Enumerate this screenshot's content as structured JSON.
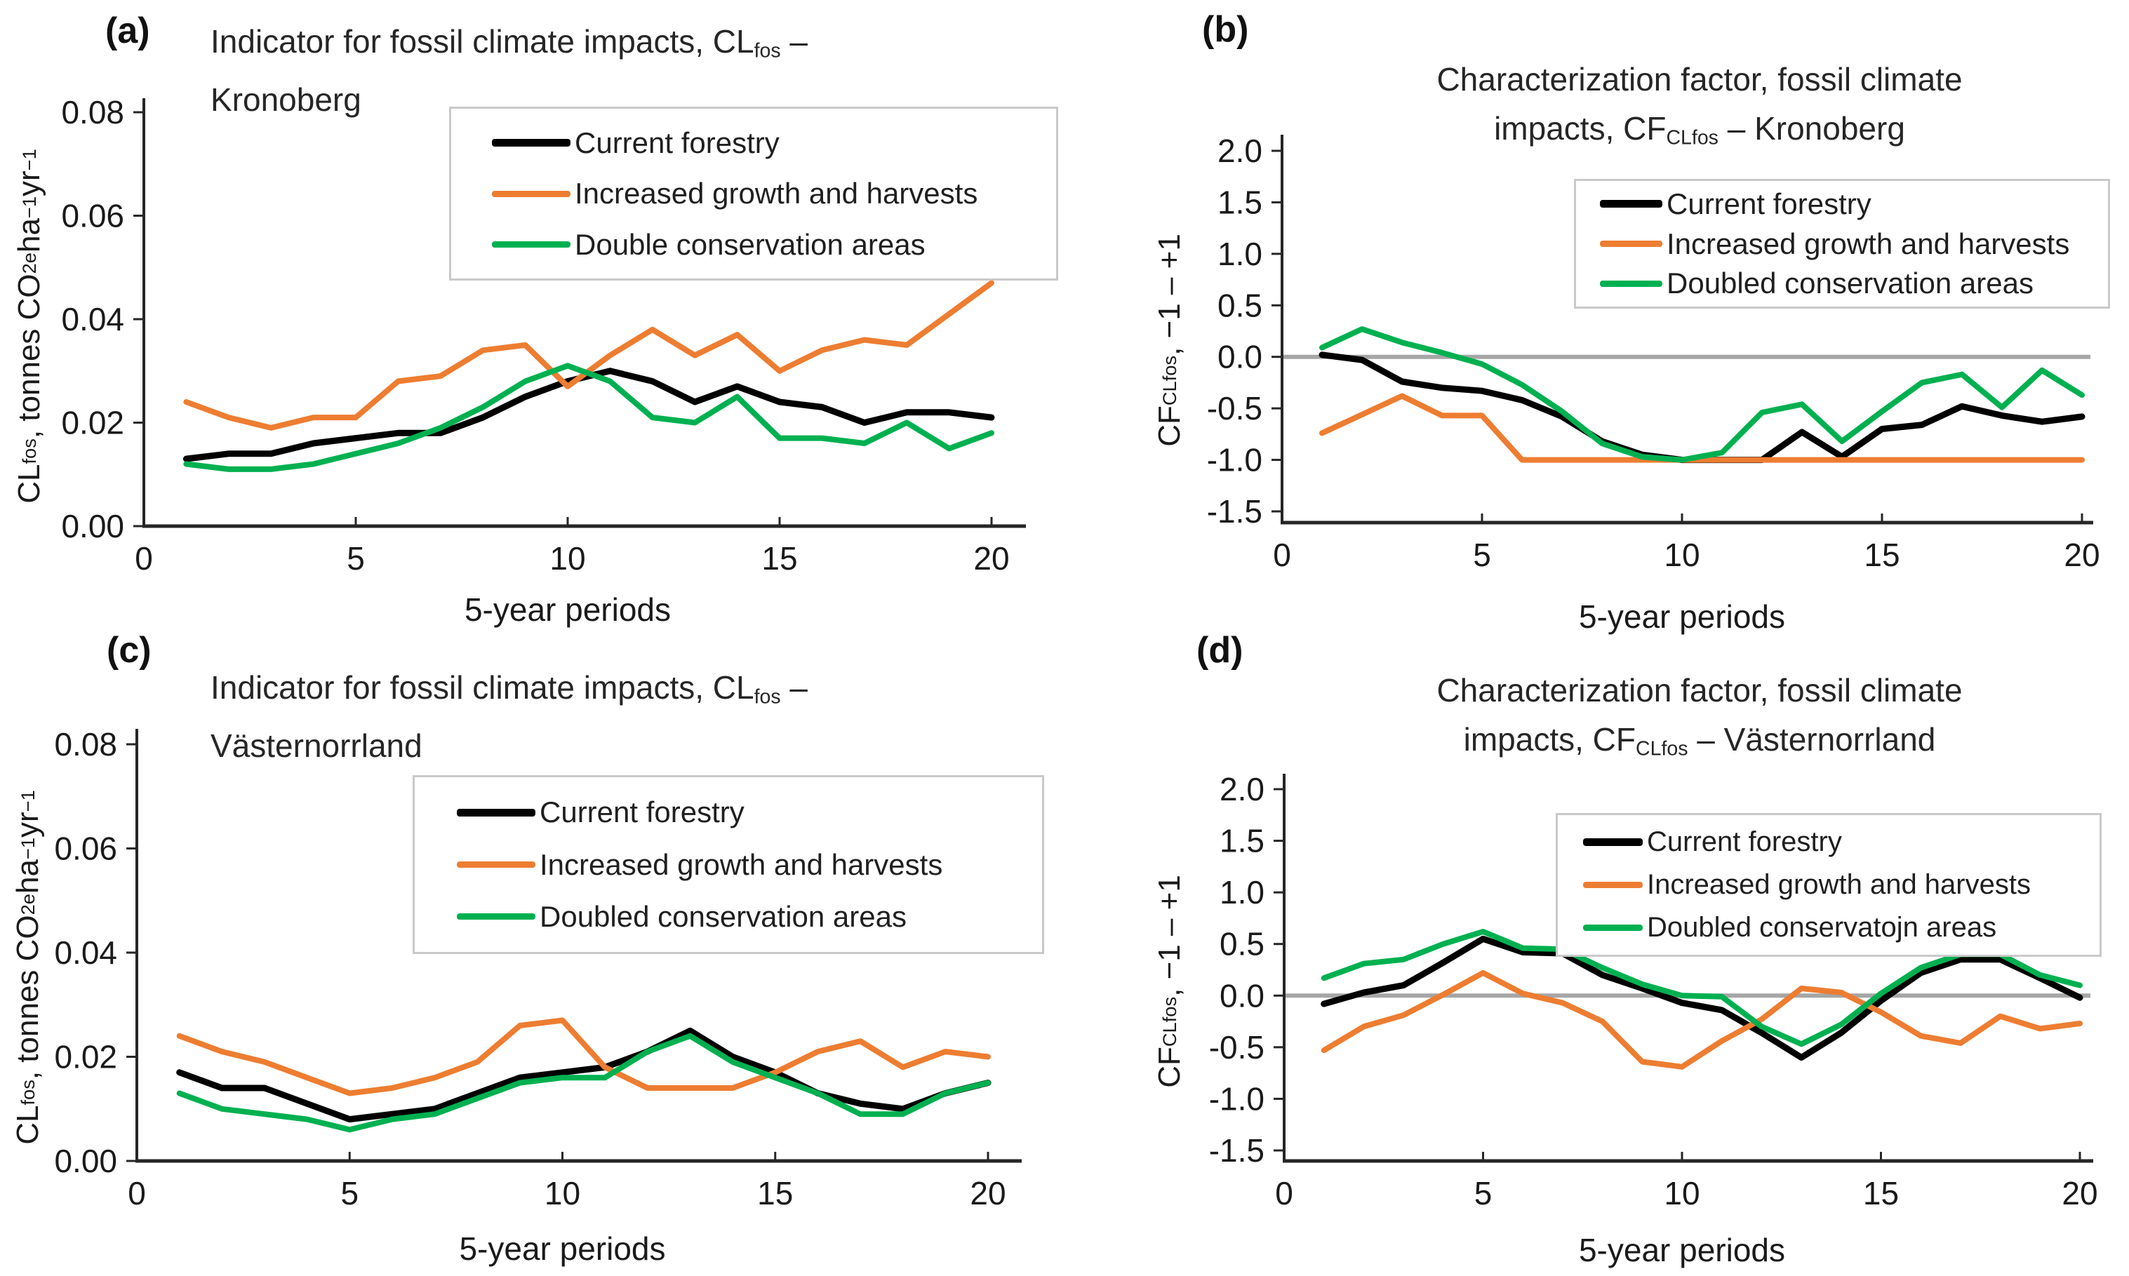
{
  "figure": {
    "background": "#FFFFFF",
    "panels": [
      {
        "id": "a",
        "tag": "(a)",
        "title_line1": [
          {
            "t": "Indicator for fossil climate impacts, CL"
          },
          {
            "t": "fos",
            "v": "sub"
          },
          {
            "t": " –"
          }
        ],
        "title_line2": [
          {
            "t": "Kronoberg"
          }
        ],
        "ylabel": [
          {
            "t": "CL"
          },
          {
            "t": "fos",
            "v": "sub"
          },
          {
            "t": ", tonnes CO"
          },
          {
            "t": "2e",
            "v": "sub"
          },
          {
            "t": " ha"
          },
          {
            "t": "−1",
            "v": "sup"
          },
          {
            "t": " yr"
          },
          {
            "t": "−1",
            "v": "sup"
          }
        ],
        "xlabel": "5-year periods",
        "legend": [
          {
            "label": "Current forestry",
            "series": "current"
          },
          {
            "label": "Increased growth and harvests",
            "series": "increased"
          },
          {
            "label": "Double conservation areas",
            "series": "doubled"
          }
        ]
      },
      {
        "id": "b",
        "tag": "(b)",
        "title_line1": [
          {
            "t": "Characterization factor, fossil climate"
          }
        ],
        "title_line2": [
          {
            "t": "impacts, CF"
          },
          {
            "t": "CLfos",
            "v": "sub"
          },
          {
            "t": " – Kronoberg"
          }
        ],
        "ylabel": [
          {
            "t": "CF"
          },
          {
            "t": "CLfos",
            "v": "sub"
          },
          {
            "t": ", −1 – +1"
          }
        ],
        "xlabel": "5-year periods",
        "legend": [
          {
            "label": "Current forestry",
            "series": "current"
          },
          {
            "label": "Increased growth and harvests",
            "series": "increased"
          },
          {
            "label": "Doubled conservation areas",
            "series": "doubled"
          }
        ]
      },
      {
        "id": "c",
        "tag": "(c)",
        "title_line1": [
          {
            "t": "Indicator for fossil climate impacts, CL"
          },
          {
            "t": "fos",
            "v": "sub"
          },
          {
            "t": " –"
          }
        ],
        "title_line2": [
          {
            "t": "Västernorrland"
          }
        ],
        "ylabel": [
          {
            "t": "CL"
          },
          {
            "t": "fos",
            "v": "sub"
          },
          {
            "t": ", tonnes CO"
          },
          {
            "t": "2e",
            "v": "sub"
          },
          {
            "t": " ha"
          },
          {
            "t": "−1",
            "v": "sup"
          },
          {
            "t": " yr"
          },
          {
            "t": "−1",
            "v": "sup"
          }
        ],
        "xlabel": "5-year periods",
        "legend": [
          {
            "label": "Current forestry",
            "series": "current"
          },
          {
            "label": "Increased growth and harvests",
            "series": "increased"
          },
          {
            "label": "Doubled conservation areas",
            "series": "doubled"
          }
        ]
      },
      {
        "id": "d",
        "tag": "(d)",
        "title_line1": [
          {
            "t": "Characterization factor, fossil climate"
          }
        ],
        "title_line2": [
          {
            "t": "impacts, CF"
          },
          {
            "t": "CLfos",
            "v": "sub"
          },
          {
            "t": " – Västernorrland"
          }
        ],
        "ylabel": [
          {
            "t": "CF"
          },
          {
            "t": "CLfos",
            "v": "sub"
          },
          {
            "t": ", −1 – +1"
          }
        ],
        "xlabel": "5-year periods",
        "legend": [
          {
            "label": "Current forestry",
            "series": "current"
          },
          {
            "label": "Increased growth and harvests",
            "series": "increased"
          },
          {
            "label": "Doubled conservatojn areas",
            "series": "doubled"
          }
        ]
      }
    ]
  },
  "colors": {
    "current": "#000000",
    "increased": "#ED7D31",
    "doubled": "#00B050",
    "zero_line": "#A6A6A6",
    "axis": "#262626",
    "legend_border": "#C9C9C9"
  },
  "chart_data": [
    {
      "id": "a",
      "type": "line",
      "title": "Indicator for fossil climate impacts, CLfos – Kronoberg",
      "xlabel": "5-year periods",
      "ylabel": "CLfos, tonnes CO2e ha−1 yr−1",
      "xlim": [
        0,
        21
      ],
      "ylim": [
        0,
        0.08
      ],
      "xticks": [
        0,
        5,
        10,
        15,
        20
      ],
      "yticks": [
        0.08,
        0.06,
        0.04,
        0.02,
        0
      ],
      "grid": false,
      "zero_line": false,
      "legend_position": "upper-right-box",
      "x": [
        1,
        2,
        3,
        4,
        5,
        6,
        7,
        8,
        9,
        10,
        11,
        12,
        13,
        14,
        15,
        16,
        17,
        18,
        19,
        20
      ],
      "series": [
        {
          "name": "Current forestry",
          "key": "current",
          "values": [
            0.013,
            0.014,
            0.014,
            0.016,
            0.017,
            0.018,
            0.018,
            0.021,
            0.025,
            0.028,
            0.03,
            0.028,
            0.024,
            0.027,
            0.024,
            0.023,
            0.02,
            0.022,
            0.022,
            0.021
          ]
        },
        {
          "name": "Increased growth and harvests",
          "key": "increased",
          "values": [
            0.024,
            0.021,
            0.019,
            0.021,
            0.021,
            0.028,
            0.029,
            0.034,
            0.035,
            0.027,
            0.033,
            0.038,
            0.033,
            0.037,
            0.03,
            0.034,
            0.036,
            0.035,
            0.041,
            0.047
          ]
        },
        {
          "name": "Double conservation areas",
          "key": "doubled",
          "values": [
            0.012,
            0.011,
            0.011,
            0.012,
            0.014,
            0.016,
            0.019,
            0.023,
            0.028,
            0.031,
            0.028,
            0.021,
            0.02,
            0.025,
            0.017,
            0.017,
            0.016,
            0.02,
            0.015,
            0.018
          ]
        }
      ]
    },
    {
      "id": "b",
      "type": "line",
      "title": "Characterization factor, fossil climate impacts, CFCLfos – Kronoberg",
      "xlabel": "5-year periods",
      "ylabel": "CFCLfos, −1 – +1",
      "xlim": [
        0,
        21
      ],
      "ylim": [
        -1.5,
        2.0
      ],
      "xticks": [
        0,
        5,
        10,
        15,
        20
      ],
      "yticks": [
        2.0,
        1.5,
        1.0,
        0.5,
        0.0,
        -0.5,
        -1.0,
        -1.5
      ],
      "grid": false,
      "zero_line": true,
      "legend_position": "upper-right-box",
      "x": [
        1,
        2,
        3,
        4,
        5,
        6,
        7,
        8,
        9,
        10,
        11,
        12,
        13,
        14,
        15,
        16,
        17,
        18,
        19,
        20
      ],
      "series": [
        {
          "name": "Current forestry",
          "key": "current",
          "values": [
            0.02,
            -0.03,
            -0.24,
            -0.3,
            -0.33,
            -0.42,
            -0.58,
            -0.82,
            -0.95,
            -1.0,
            -1.0,
            -1.0,
            -0.73,
            -0.97,
            -0.7,
            -0.66,
            -0.48,
            -0.57,
            -0.63,
            -0.58
          ]
        },
        {
          "name": "Increased growth and harvests",
          "key": "increased",
          "values": [
            -0.74,
            -0.56,
            -0.38,
            -0.57,
            -0.57,
            -1.0,
            -1.0,
            -1.0,
            -1.0,
            -1.0,
            -1.0,
            -1.0,
            -1.0,
            -1.0,
            -1.0,
            -1.0,
            -1.0,
            -1.0,
            -1.0,
            -1.0
          ]
        },
        {
          "name": "Doubled conservation areas",
          "key": "doubled",
          "values": [
            0.09,
            0.27,
            0.14,
            0.04,
            -0.07,
            -0.27,
            -0.53,
            -0.84,
            -0.97,
            -1.0,
            -0.93,
            -0.54,
            -0.46,
            -0.82,
            -0.53,
            -0.25,
            -0.17,
            -0.49,
            -0.13,
            -0.37
          ]
        }
      ]
    },
    {
      "id": "c",
      "type": "line",
      "title": "Indicator for fossil climate impacts, CLfos – Västernorrland",
      "xlabel": "5-year periods",
      "ylabel": "CLfos, tonnes CO2e ha−1 yr−1",
      "xlim": [
        0,
        21
      ],
      "ylim": [
        0,
        0.08
      ],
      "xticks": [
        0,
        5,
        10,
        15,
        20
      ],
      "yticks": [
        0.08,
        0.06,
        0.04,
        0.02,
        0
      ],
      "grid": false,
      "zero_line": false,
      "legend_position": "upper-right-box",
      "x": [
        1,
        2,
        3,
        4,
        5,
        6,
        7,
        8,
        9,
        10,
        11,
        12,
        13,
        14,
        15,
        16,
        17,
        18,
        19,
        20
      ],
      "series": [
        {
          "name": "Current forestry",
          "key": "current",
          "values": [
            0.017,
            0.014,
            0.014,
            0.011,
            0.008,
            0.009,
            0.01,
            0.013,
            0.016,
            0.017,
            0.018,
            0.021,
            0.025,
            0.02,
            0.017,
            0.013,
            0.011,
            0.01,
            0.013,
            0.015
          ]
        },
        {
          "name": "Increased growth and harvests",
          "key": "increased",
          "values": [
            0.024,
            0.021,
            0.019,
            0.016,
            0.013,
            0.014,
            0.016,
            0.019,
            0.026,
            0.027,
            0.018,
            0.014,
            0.014,
            0.014,
            0.017,
            0.021,
            0.023,
            0.018,
            0.021,
            0.02
          ]
        },
        {
          "name": "Doubled conservation areas",
          "key": "doubled",
          "values": [
            0.013,
            0.01,
            0.009,
            0.008,
            0.006,
            0.008,
            0.009,
            0.012,
            0.015,
            0.016,
            0.016,
            0.021,
            0.024,
            0.019,
            0.016,
            0.013,
            0.009,
            0.009,
            0.013,
            0.015
          ]
        }
      ]
    },
    {
      "id": "d",
      "type": "line",
      "title": "Characterization factor, fossil climate impacts, CFCLfos – Västernorrland",
      "xlabel": "5-year periods",
      "ylabel": "CFCLfos, −1 – +1",
      "xlim": [
        0,
        21
      ],
      "ylim": [
        -1.5,
        2.0
      ],
      "xticks": [
        0,
        5,
        10,
        15,
        20
      ],
      "yticks": [
        2.0,
        1.5,
        1.0,
        0.5,
        0.0,
        -0.5,
        -1.0,
        -1.5
      ],
      "grid": false,
      "zero_line": true,
      "legend_position": "upper-right-box",
      "x": [
        1,
        2,
        3,
        4,
        5,
        6,
        7,
        8,
        9,
        10,
        11,
        12,
        13,
        14,
        15,
        16,
        17,
        18,
        19,
        20
      ],
      "series": [
        {
          "name": "Current forestry",
          "key": "current",
          "values": [
            -0.08,
            0.03,
            0.1,
            0.32,
            0.55,
            0.42,
            0.41,
            0.2,
            0.07,
            -0.07,
            -0.14,
            -0.36,
            -0.6,
            -0.36,
            -0.05,
            0.22,
            0.35,
            0.35,
            0.17,
            -0.02
          ]
        },
        {
          "name": "Increased growth and harvests",
          "key": "increased",
          "values": [
            -0.53,
            -0.3,
            -0.19,
            0.01,
            0.22,
            0.02,
            -0.07,
            -0.25,
            -0.64,
            -0.69,
            -0.44,
            -0.23,
            0.07,
            0.03,
            -0.16,
            -0.39,
            -0.46,
            -0.2,
            -0.32,
            -0.27
          ]
        },
        {
          "name": "Doubled conservatojn areas",
          "key": "doubled",
          "values": [
            0.17,
            0.31,
            0.35,
            0.5,
            0.62,
            0.46,
            0.45,
            0.27,
            0.11,
            0.0,
            -0.01,
            -0.3,
            -0.47,
            -0.28,
            0.02,
            0.27,
            0.4,
            0.4,
            0.2,
            0.1
          ]
        }
      ]
    }
  ]
}
